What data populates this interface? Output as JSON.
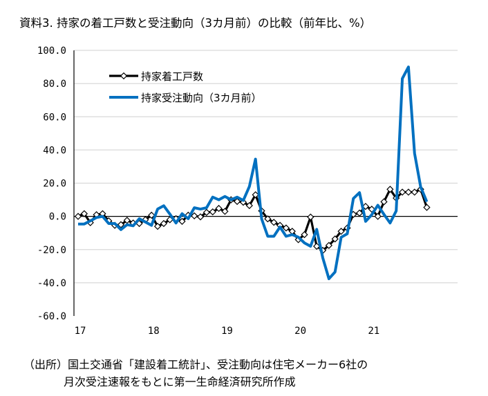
{
  "chart_data": {
    "type": "line",
    "title": "資料3. 持家の着工戸数と受注動向（3カ月前）の比較（前年比、%）",
    "xlabel": "",
    "ylabel": "",
    "ylim": [
      -60,
      100
    ],
    "yticks": [
      "100.0",
      "80.0",
      "60.0",
      "40.0",
      "20.0",
      "0.0",
      "-20.0",
      "-40.0",
      "-60.0"
    ],
    "ytick_values": [
      100,
      80,
      60,
      40,
      20,
      0,
      -20,
      -40,
      -60
    ],
    "xticks": [
      "17",
      "18",
      "19",
      "20",
      "21"
    ],
    "x_start": "2017-01",
    "x_end": "2021-10",
    "frequency": "monthly",
    "grid": true,
    "legend": "top-left",
    "series": [
      {
        "name": "持家着工戸数",
        "color": "#000000",
        "marker": "diamond",
        "values": [
          0,
          1.6,
          -3.8,
          1,
          1.6,
          -2.7,
          -5.4,
          -5,
          -2.4,
          -4,
          -4.3,
          -2,
          0.7,
          -6,
          -4.3,
          -2,
          -1.4,
          -3,
          0.7,
          0.3,
          -0.3,
          2.4,
          2.7,
          4.8,
          3,
          10,
          9,
          8.5,
          6.5,
          13,
          3.3,
          -1.5,
          -3.6,
          -5.4,
          -7,
          -9,
          -14,
          -11,
          -0.4,
          -18,
          -20.5,
          -17.5,
          -13.6,
          -9,
          -7,
          1.2,
          2,
          6,
          4.3,
          0,
          8.8,
          16.3,
          11,
          14.6,
          14.6,
          14.6,
          16.3,
          5.4
        ]
      },
      {
        "name": "持家受注動向（3カ月前）",
        "color": "#0070C0",
        "marker": "none",
        "values": [
          -4.6,
          -4.6,
          -2.7,
          -0.7,
          0,
          -4.3,
          -4.3,
          -8,
          -5,
          -5.7,
          -1.4,
          -3.4,
          -5.4,
          4.4,
          6.4,
          1.4,
          -4,
          1.6,
          -1.4,
          5.2,
          4.4,
          5.2,
          11.6,
          10,
          12,
          10,
          11.6,
          9.6,
          18,
          34.5,
          -1.5,
          -12,
          -12,
          -6.4,
          -12,
          -11,
          -12.5,
          -16,
          -18,
          -7.8,
          -25,
          -37.6,
          -33.5,
          -12.6,
          -10.5,
          10.8,
          14.3,
          -3,
          1,
          6.7,
          1.2,
          -4,
          3.3,
          83,
          90,
          38,
          17.7,
          8.8
        ]
      }
    ],
    "source_line1": "（出所）国土交通省「建設着工統計」、受注動向は住宅メーカー6社の",
    "source_line2": "月次受注速報をもとに第一生命経済研究所作成"
  }
}
